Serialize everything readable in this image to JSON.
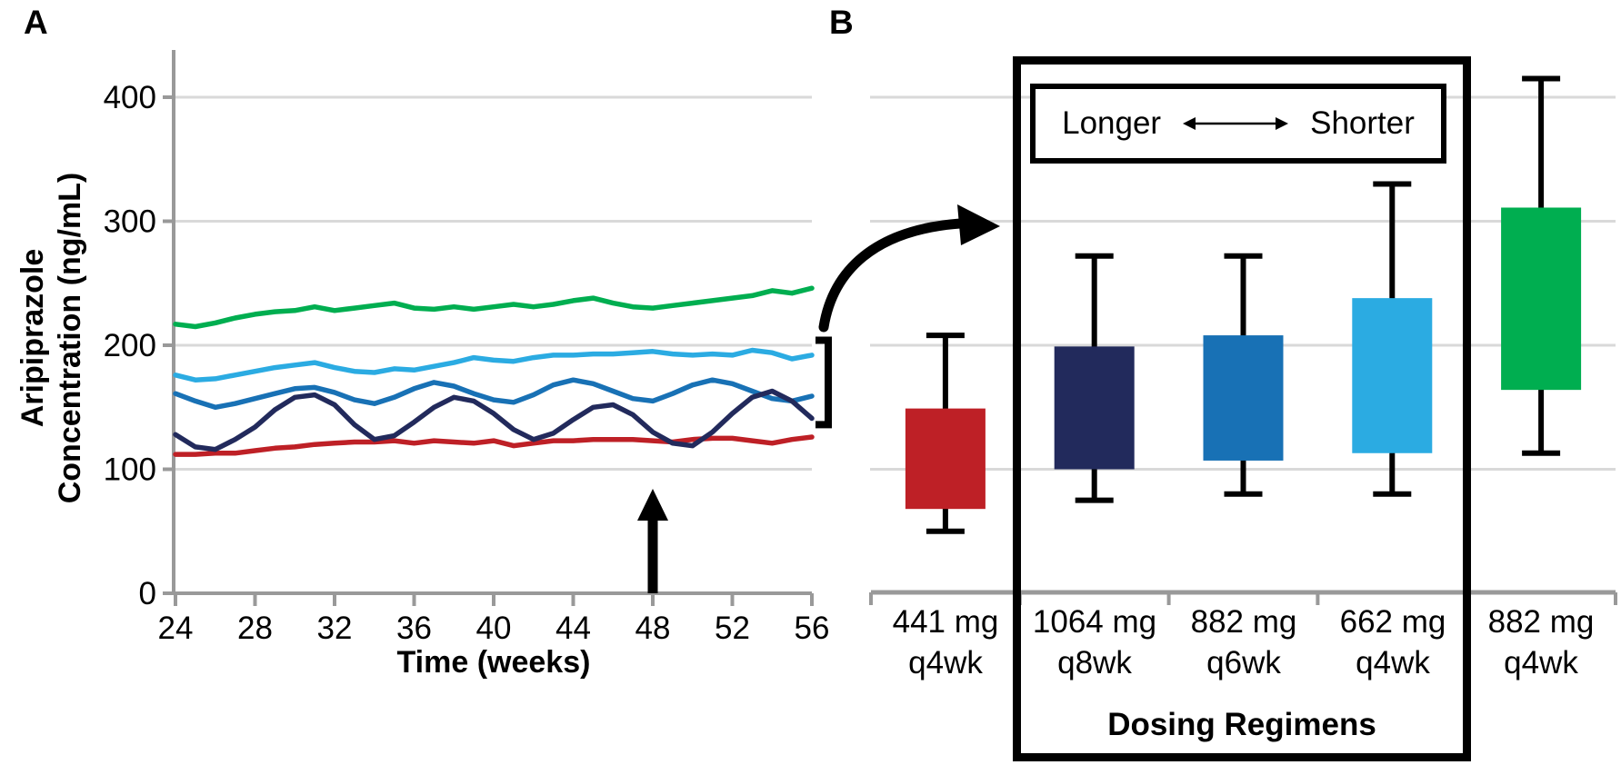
{
  "panels": {
    "a": {
      "label": "A"
    },
    "b": {
      "label": "B"
    }
  },
  "colors": {
    "red": "#be2026",
    "navy": "#222a5c",
    "blue": "#1871b5",
    "light_blue": "#2babe2",
    "green": "#00ae50",
    "gridline": "#d9d9d9",
    "axis": "#999999",
    "annotation": "#000000"
  },
  "chart_data": [
    {
      "type": "line",
      "panel": "A",
      "xlabel": "Time (weeks)",
      "ylabel_line1": "Aripiprazole",
      "ylabel_line2": "Concentration (ng/mL)",
      "xlim": [
        24,
        56
      ],
      "ylim": [
        0,
        430
      ],
      "x_ticks": [
        24,
        28,
        32,
        36,
        40,
        44,
        48,
        52,
        56
      ],
      "y_ticks": [
        0,
        100,
        200,
        300,
        400
      ],
      "grid": "horizontal",
      "x": [
        24,
        25,
        26,
        27,
        28,
        29,
        30,
        31,
        32,
        33,
        34,
        35,
        36,
        37,
        38,
        39,
        40,
        41,
        42,
        43,
        44,
        45,
        46,
        47,
        48,
        49,
        50,
        51,
        52,
        53,
        54,
        55,
        56
      ],
      "series": [
        {
          "name": "441 mg q4wk",
          "color": "#be2026",
          "values": [
            112,
            112,
            113,
            113,
            115,
            117,
            118,
            120,
            121,
            122,
            122,
            123,
            121,
            123,
            122,
            121,
            123,
            119,
            121,
            123,
            123,
            124,
            124,
            124,
            123,
            122,
            124,
            125,
            125,
            123,
            121,
            124,
            126
          ]
        },
        {
          "name": "882 mg q6wk",
          "color": "#1871b5",
          "values": [
            161,
            155,
            150,
            153,
            157,
            161,
            165,
            166,
            162,
            156,
            153,
            158,
            165,
            170,
            167,
            161,
            156,
            154,
            160,
            168,
            172,
            169,
            163,
            157,
            155,
            161,
            168,
            172,
            169,
            163,
            157,
            155,
            159
          ]
        },
        {
          "name": "1064 mg q8wk",
          "color": "#222a5c",
          "values": [
            128,
            118,
            116,
            124,
            134,
            148,
            158,
            160,
            152,
            136,
            124,
            127,
            138,
            150,
            158,
            155,
            145,
            132,
            124,
            129,
            140,
            150,
            152,
            144,
            130,
            121,
            119,
            130,
            145,
            158,
            163,
            155,
            141
          ]
        },
        {
          "name": "662 mg q4wk",
          "color": "#2babe2",
          "values": [
            176,
            172,
            173,
            176,
            179,
            182,
            184,
            186,
            182,
            179,
            178,
            181,
            180,
            183,
            186,
            190,
            188,
            187,
            190,
            192,
            192,
            193,
            193,
            194,
            195,
            193,
            192,
            193,
            192,
            196,
            194,
            189,
            192
          ]
        },
        {
          "name": "882 mg q4wk",
          "color": "#00ae50",
          "values": [
            217,
            215,
            218,
            222,
            225,
            227,
            228,
            231,
            228,
            230,
            232,
            234,
            230,
            229,
            231,
            229,
            231,
            233,
            231,
            233,
            236,
            238,
            234,
            231,
            230,
            232,
            234,
            236,
            238,
            240,
            244,
            242,
            246
          ]
        }
      ],
      "annotations": {
        "up_arrow_week": 48,
        "bracket_range_ngml": [
          136,
          204
        ]
      }
    },
    {
      "type": "box",
      "panel": "B",
      "xlabel": "Dosing Regimens",
      "ylim": [
        0,
        430
      ],
      "grid": "horizontal",
      "legend": {
        "longer": "Longer",
        "shorter": "Shorter"
      },
      "highlighted_categories": [
        "1064 mg q8wk",
        "882 mg q6wk",
        "662 mg q4wk"
      ],
      "categories": [
        {
          "dose": "441 mg",
          "interval": "q4wk"
        },
        {
          "dose": "1064 mg",
          "interval": "q8wk"
        },
        {
          "dose": "882 mg",
          "interval": "q6wk"
        },
        {
          "dose": "662 mg",
          "interval": "q4wk"
        },
        {
          "dose": "882 mg",
          "interval": "q4wk"
        }
      ],
      "boxes": [
        {
          "low": 50,
          "q1": 68,
          "q3": 149,
          "high": 208,
          "color": "#be2026"
        },
        {
          "low": 75,
          "q1": 100,
          "q3": 199,
          "high": 272,
          "color": "#222a5c"
        },
        {
          "low": 80,
          "q1": 107,
          "q3": 208,
          "high": 272,
          "color": "#1871b5"
        },
        {
          "low": 80,
          "q1": 113,
          "q3": 238,
          "high": 330,
          "color": "#2babe2"
        },
        {
          "low": 113,
          "q1": 164,
          "q3": 311,
          "high": 415,
          "color": "#00ae50"
        }
      ]
    }
  ]
}
